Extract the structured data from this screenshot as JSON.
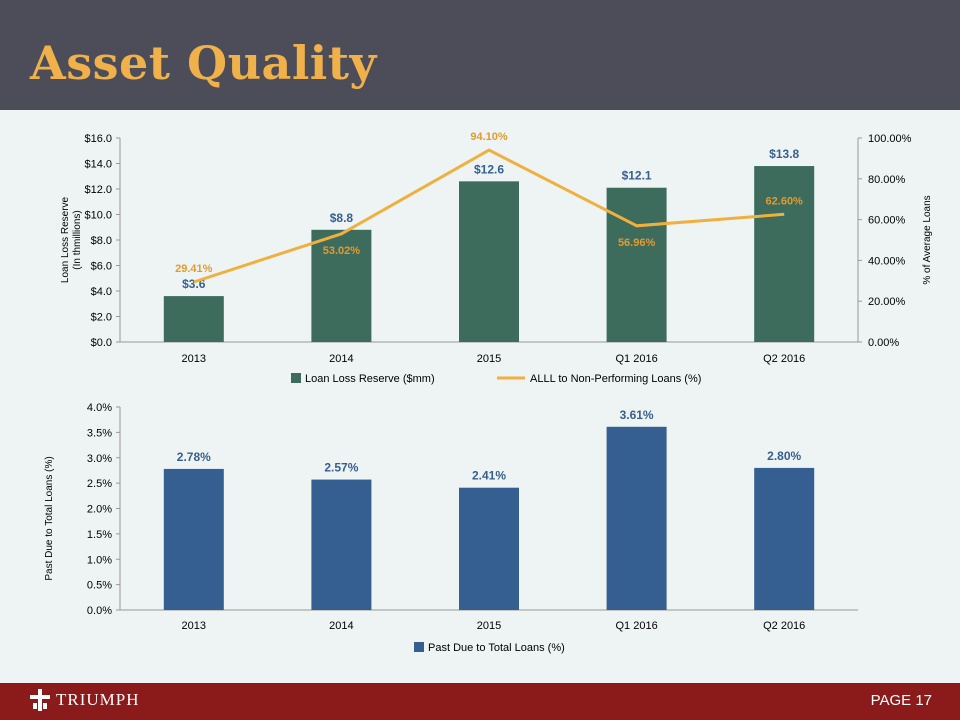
{
  "header": {
    "title": "Asset Quality"
  },
  "footer": {
    "logo_text": "TRIUMPH",
    "page_label": "PAGE 17"
  },
  "colors": {
    "header_bg": "#4d4d5a",
    "title": "#f0b14a",
    "footer_bg": "#8b1a1a",
    "bar_green": "#3d6b5c",
    "line_orange": "#f0b040",
    "bar_blue": "#365f91"
  },
  "chart_data": [
    {
      "type": "bar",
      "categories": [
        "2013",
        "2014",
        "2015",
        "Q1 2016",
        "Q2 2016"
      ],
      "series": [
        {
          "name": "Loan Loss Reserve ($mm)",
          "type": "bar",
          "axis": "left",
          "values": [
            3.6,
            8.8,
            12.6,
            12.1,
            13.8
          ],
          "labels": [
            "$3.6",
            "$8.8",
            "$12.6",
            "$12.1",
            "$13.8"
          ]
        },
        {
          "name": "ALLL to Non-Performing Loans (%)",
          "type": "line",
          "axis": "right",
          "values": [
            29.41,
            53.02,
            94.1,
            56.96,
            62.6
          ],
          "labels": [
            "29.41%",
            "53.02%",
            "94.10%",
            "56.96%",
            "62.60%"
          ]
        }
      ],
      "ylabel": "Loan Loss Reserve\n(In thmillions)",
      "y2label": "% of Average Loans",
      "ylim": [
        0,
        16
      ],
      "yticks": [
        "$0.0",
        "$2.0",
        "$4.0",
        "$6.0",
        "$8.0",
        "$10.0",
        "$12.0",
        "$14.0",
        "$16.0"
      ],
      "y2lim": [
        0,
        100
      ],
      "y2ticks": [
        "0.00%",
        "20.00%",
        "40.00%",
        "60.00%",
        "80.00%",
        "100.00%"
      ],
      "legend_position": "bottom",
      "grid": false
    },
    {
      "type": "bar",
      "categories": [
        "2013",
        "2014",
        "2015",
        "Q1 2016",
        "Q2 2016"
      ],
      "series": [
        {
          "name": "Past Due to Total Loans (%)",
          "values": [
            2.78,
            2.57,
            2.41,
            3.61,
            2.8
          ],
          "labels": [
            "2.78%",
            "2.57%",
            "2.41%",
            "3.61%",
            "2.80%"
          ]
        }
      ],
      "ylabel": "Past Due to Total Loans (%)",
      "ylim": [
        0,
        4
      ],
      "yticks": [
        "0.0%",
        "0.5%",
        "1.0%",
        "1.5%",
        "2.0%",
        "2.5%",
        "3.0%",
        "3.5%",
        "4.0%"
      ],
      "legend_position": "bottom",
      "grid": false
    }
  ]
}
